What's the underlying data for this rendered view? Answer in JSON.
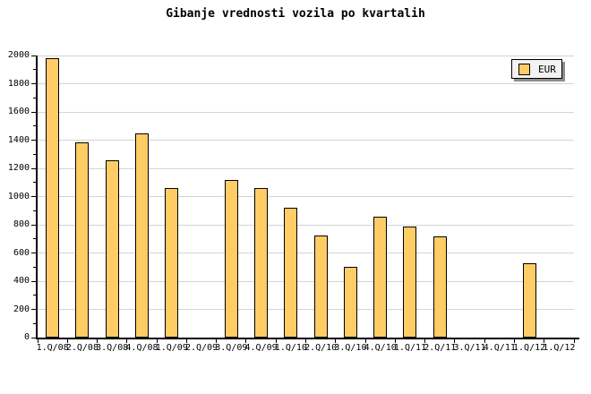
{
  "chart_data": {
    "type": "bar",
    "title": "Gibanje vrednosti vozila po kvartalih",
    "categories": [
      "1.Q/08",
      "2.Q/08",
      "3.Q/08",
      "4.Q/08",
      "1.Q/09",
      "2.Q/09",
      "3.Q/09",
      "4.Q/09",
      "1.Q/10",
      "2.Q/10",
      "3.Q/10",
      "4.Q/10",
      "1.Q/11",
      "2.Q/11",
      "3.Q/11",
      "4.Q/11",
      "1.Q/12",
      "1.Q/12"
    ],
    "values": [
      1980,
      1385,
      1255,
      1445,
      1060,
      0,
      1120,
      1060,
      920,
      725,
      500,
      860,
      785,
      720,
      0,
      0,
      530,
      0
    ],
    "legend": [
      "EUR"
    ],
    "legend_position": "top-right",
    "xlabel": "",
    "ylabel": "",
    "ylim": [
      0,
      2000
    ],
    "ytick_step": 200,
    "yminor_step": 100,
    "ytick_labels": [
      "0",
      "200",
      "400",
      "600",
      "800",
      "1000",
      "1200",
      "1400",
      "1600",
      "1800",
      "2000"
    ],
    "grid": true,
    "colors": {
      "bar_fill": "#FFCC66",
      "bar_border": "#000000",
      "gridline": "#D4D4D4",
      "axis": "#000000",
      "text": "#000000",
      "legend_bg": "#F2F2F2",
      "legend_border": "#000000",
      "legend_shadow": "#8D8D8D"
    }
  }
}
